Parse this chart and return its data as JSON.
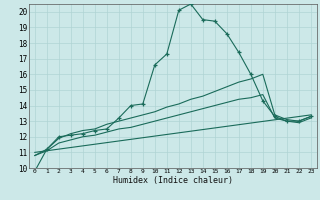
{
  "xlabel": "Humidex (Indice chaleur)",
  "background_color": "#cce8e8",
  "grid_color": "#b0d4d4",
  "line_color": "#1a6b5a",
  "xlim": [
    -0.5,
    23.5
  ],
  "ylim": [
    10,
    20.5
  ],
  "xticks": [
    0,
    1,
    2,
    3,
    4,
    5,
    6,
    7,
    8,
    9,
    10,
    11,
    12,
    13,
    14,
    15,
    16,
    17,
    18,
    19,
    20,
    21,
    22,
    23
  ],
  "yticks": [
    10,
    11,
    12,
    13,
    14,
    15,
    16,
    17,
    18,
    19,
    20
  ],
  "line1_x": [
    0,
    1,
    2,
    3,
    4,
    5,
    6,
    7,
    8,
    9,
    10,
    11,
    12,
    13,
    14,
    15,
    16,
    17,
    18,
    19,
    20,
    21,
    22,
    23
  ],
  "line1_y": [
    9.8,
    11.2,
    12.0,
    12.1,
    12.2,
    12.4,
    12.5,
    13.2,
    14.0,
    14.1,
    16.6,
    17.3,
    20.1,
    20.5,
    19.5,
    19.4,
    18.6,
    17.4,
    16.0,
    14.3,
    13.3,
    13.0,
    13.0,
    13.3
  ],
  "line2_x": [
    0,
    1,
    2,
    3,
    4,
    5,
    6,
    7,
    8,
    9,
    10,
    11,
    12,
    13,
    14,
    15,
    16,
    17,
    18,
    19,
    20,
    21,
    22,
    23
  ],
  "line2_y": [
    10.8,
    11.2,
    11.9,
    12.2,
    12.4,
    12.5,
    12.8,
    13.0,
    13.2,
    13.4,
    13.6,
    13.9,
    14.1,
    14.4,
    14.6,
    14.9,
    15.2,
    15.5,
    15.7,
    16.0,
    13.4,
    13.1,
    13.0,
    13.3
  ],
  "line3_x": [
    0,
    1,
    2,
    3,
    4,
    5,
    6,
    7,
    8,
    9,
    10,
    11,
    12,
    13,
    14,
    15,
    16,
    17,
    18,
    19,
    20,
    21,
    22,
    23
  ],
  "line3_y": [
    10.8,
    11.1,
    11.6,
    11.8,
    12.0,
    12.1,
    12.3,
    12.5,
    12.6,
    12.8,
    13.0,
    13.2,
    13.4,
    13.6,
    13.8,
    14.0,
    14.2,
    14.4,
    14.5,
    14.7,
    13.2,
    13.0,
    12.9,
    13.2
  ],
  "line4_x": [
    0,
    23
  ],
  "line4_y": [
    11.0,
    13.4
  ]
}
